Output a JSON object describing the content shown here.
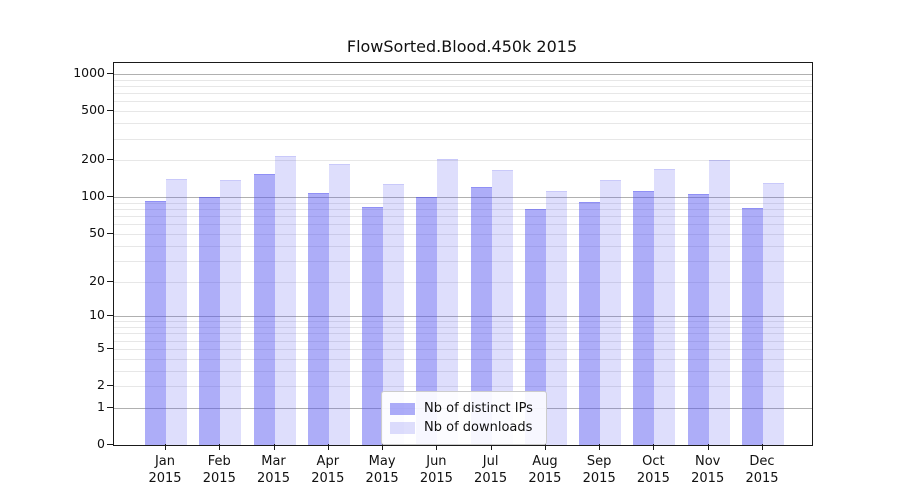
{
  "chart_data": {
    "type": "bar",
    "title": "FlowSorted.Blood.450k 2015",
    "categories": [
      "Jan",
      "Feb",
      "Mar",
      "Apr",
      "May",
      "Jun",
      "Jul",
      "Aug",
      "Sep",
      "Oct",
      "Nov",
      "Dec"
    ],
    "category_year": "2015",
    "series": [
      {
        "name": "Nb of distinct IPs",
        "color": "rgba(80,80,240,0.47)",
        "edge_color": "rgba(80,80,240,0.30)",
        "values": [
          91,
          98,
          151,
          106,
          81,
          98,
          118,
          79,
          90,
          110,
          104,
          80
        ]
      },
      {
        "name": "Nb of downloads",
        "color": "rgba(80,80,240,0.19)",
        "edge_color": "rgba(80,80,240,0.15)",
        "values": [
          137,
          135,
          212,
          183,
          126,
          200,
          165,
          111,
          135,
          167,
          198,
          128
        ]
      }
    ],
    "y_ticks": [
      0,
      1,
      2,
      5,
      10,
      20,
      50,
      100,
      200,
      500,
      1000
    ],
    "y_scale": "log1p",
    "ylim": [
      0,
      1230
    ],
    "grid": true,
    "legend_position": "bottom-center",
    "colors": {
      "major_grid": "#b0b0b0",
      "minor_grid": "#e7e7e7",
      "spine": "#1a1a1a"
    }
  }
}
